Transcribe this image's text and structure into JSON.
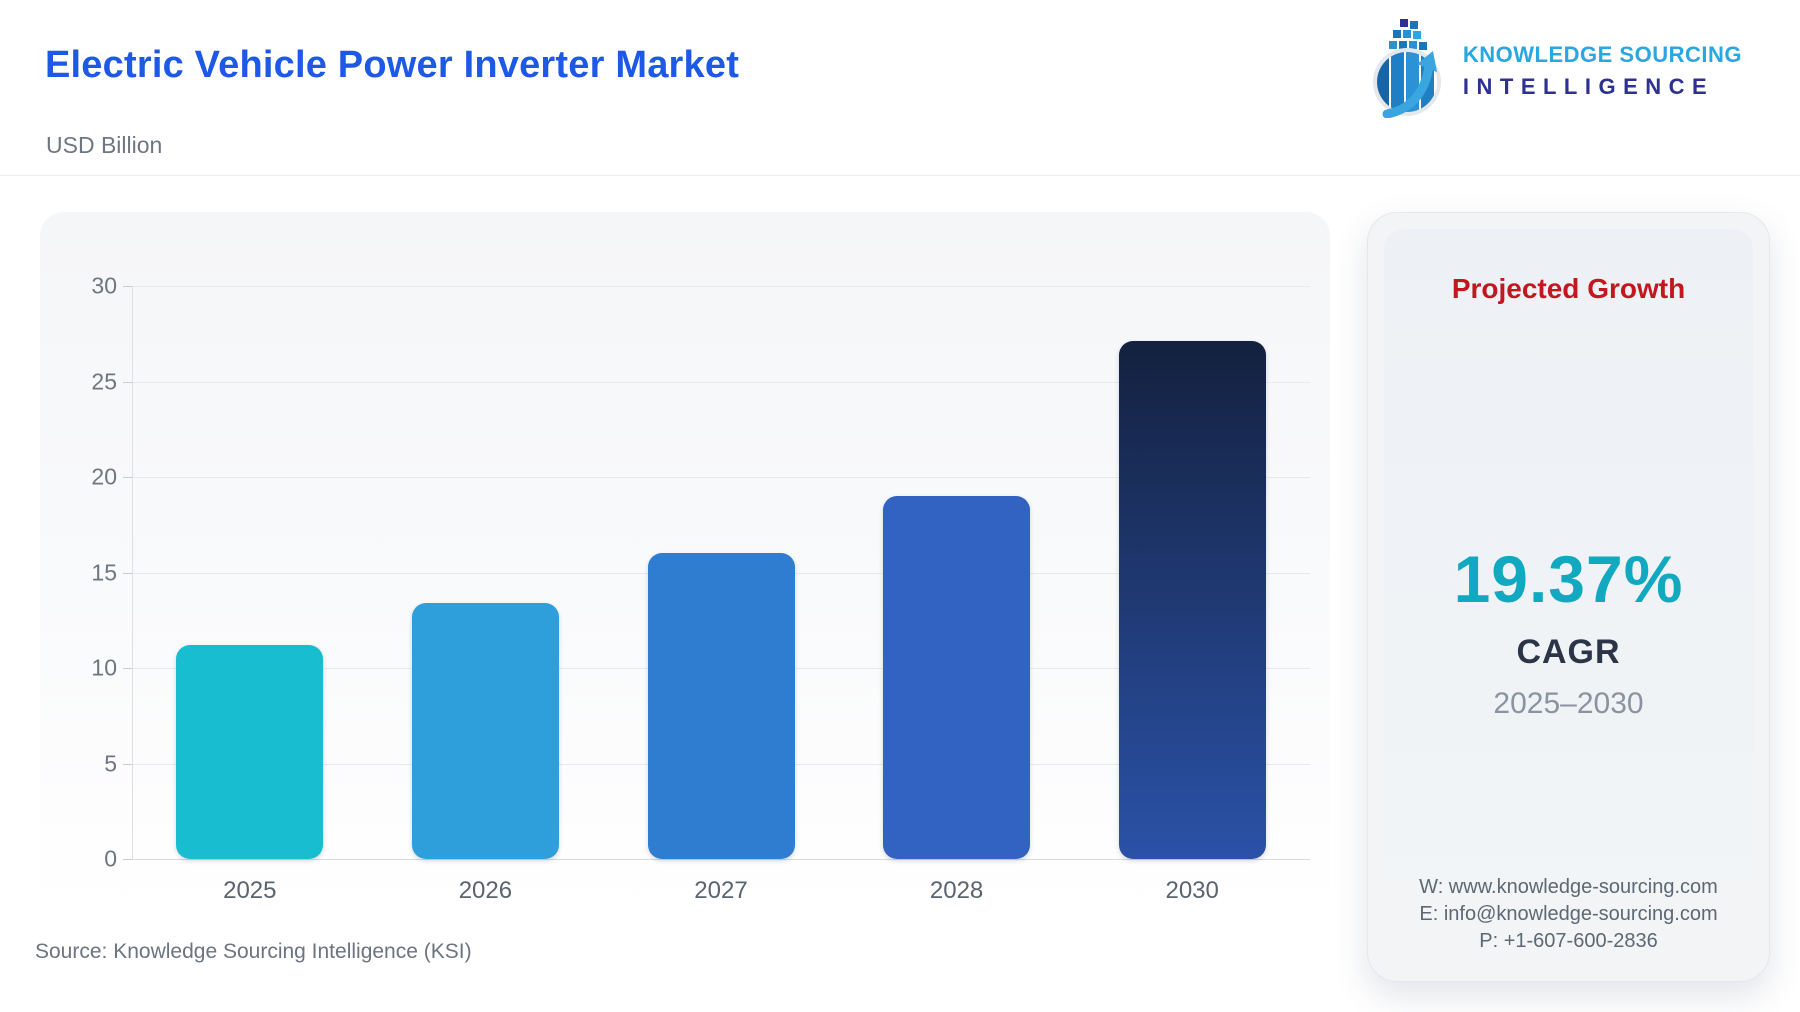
{
  "header": {
    "title": "Electric Vehicle Power Inverter Market",
    "subtitle": "USD Billion",
    "logo": {
      "line1": "KNOWLEDGE SOURCING",
      "line2": "INTELLIGENCE",
      "line1_color": "#29A7E0",
      "line2_color": "#2D3192"
    }
  },
  "chart_data": {
    "type": "bar",
    "title": "Electric Vehicle Power Inverter Market",
    "ylabel": "USD Billion",
    "categories": [
      "2025",
      "2026",
      "2027",
      "2028",
      "2030"
    ],
    "values": [
      11.2,
      13.4,
      16.0,
      19.0,
      27.1
    ],
    "ylim": [
      0,
      30
    ],
    "ytick_step": 5,
    "grid": "horizontal",
    "legend": "none",
    "bar_colors": [
      {
        "top": "#19BDD0",
        "bottom": "#19BDD0"
      },
      {
        "top": "#2E9FDB",
        "bottom": "#2E9FDB"
      },
      {
        "top": "#2F7DD0",
        "bottom": "#2F7DD0"
      },
      {
        "top": "#3263C3",
        "bottom": "#3263C3"
      },
      {
        "top": "#14213F",
        "bottom": "#2B52A8"
      }
    ]
  },
  "growth_panel": {
    "title": "Projected Growth",
    "title_color": "#C2171F",
    "cagr_value": "19.37%",
    "cagr_value_color": "#11A9BF",
    "cagr_label": "CAGR",
    "period": "2025–2030",
    "contact": {
      "website": "W: www.knowledge-sourcing.com",
      "email": "E: info@knowledge-sourcing.com",
      "phone": "P: +1-607-600-2836"
    }
  },
  "footer": {
    "source": "Source: Knowledge Sourcing Intelligence (KSI)"
  }
}
